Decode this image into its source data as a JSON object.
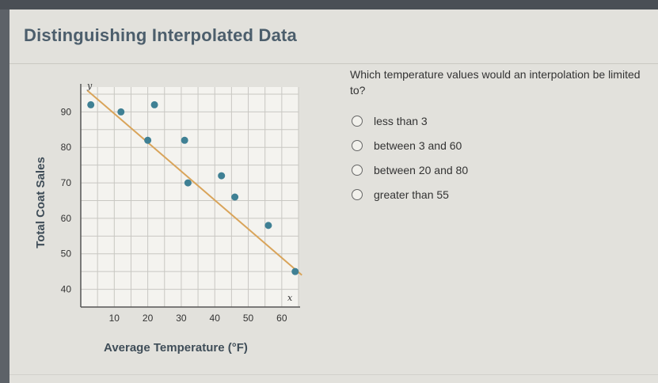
{
  "page": {
    "title": "Distinguishing Interpolated Data"
  },
  "question": {
    "text": "Which temperature values would an interpolation be limited to?",
    "options": [
      {
        "label": "less than 3"
      },
      {
        "label": "between 3 and 60"
      },
      {
        "label": "between 20 and 80"
      },
      {
        "label": "greater than 55"
      }
    ]
  },
  "chart_data": {
    "type": "scatter",
    "xlabel": "Average Temperature (°F)",
    "ylabel": "Total Coat Sales",
    "x_axis_symbol": "x",
    "y_axis_symbol": "y",
    "xlim": [
      0,
      65
    ],
    "ylim": [
      35,
      97
    ],
    "xticks": [
      10,
      20,
      30,
      40,
      50,
      60
    ],
    "yticks": [
      40,
      50,
      60,
      70,
      80,
      90
    ],
    "grid": true,
    "points": [
      {
        "x": 3,
        "y": 92
      },
      {
        "x": 12,
        "y": 90
      },
      {
        "x": 22,
        "y": 92
      },
      {
        "x": 20,
        "y": 82
      },
      {
        "x": 31,
        "y": 82
      },
      {
        "x": 32,
        "y": 70
      },
      {
        "x": 42,
        "y": 72
      },
      {
        "x": 46,
        "y": 66
      },
      {
        "x": 56,
        "y": 58
      },
      {
        "x": 64,
        "y": 45
      }
    ],
    "trend_line": {
      "x": [
        2,
        66
      ],
      "y": [
        96,
        44
      ]
    },
    "colors": {
      "points": "#3f8094",
      "trend_line": "#d9a45a",
      "grid": "#c8c7c2"
    }
  }
}
